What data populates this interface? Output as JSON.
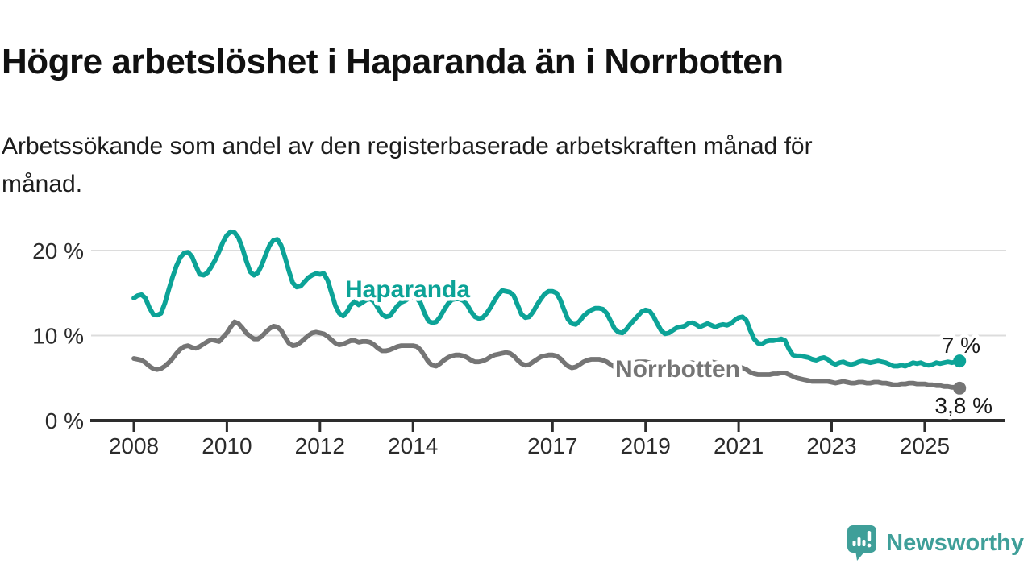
{
  "header": {
    "title": "Högre arbetslöshet i Haparanda än i Norrbotten",
    "subtitle": "Arbetssökande som andel av den registerbaserade arbetskraften månad för månad."
  },
  "chart_data": {
    "type": "line",
    "unit": "%",
    "x_start": {
      "year": 2008,
      "month": 1
    },
    "x_end": {
      "year": 2025,
      "month": 10
    },
    "x_tick_years": [
      2008,
      2010,
      2012,
      2014,
      2017,
      2019,
      2021,
      2023,
      2025
    ],
    "y_ticks": [
      {
        "value": 0,
        "label": "0 %"
      },
      {
        "value": 10,
        "label": "10 %"
      },
      {
        "value": 20,
        "label": "20 %"
      }
    ],
    "gridlines": [
      10,
      20
    ],
    "ylim": [
      0,
      23.5
    ],
    "legend_position": "inline-labels",
    "series": [
      {
        "name": "Haparanda",
        "color": "#0ca397",
        "end_label": "7 %",
        "values": [
          14.4,
          14.7,
          14.8,
          14.4,
          13.3,
          12.5,
          12.4,
          12.6,
          13.8,
          15.4,
          16.9,
          18.2,
          19.2,
          19.7,
          19.8,
          19.3,
          18.2,
          17.2,
          17.1,
          17.4,
          18.1,
          18.9,
          19.9,
          21.0,
          21.8,
          22.2,
          22.1,
          21.5,
          20.3,
          18.8,
          17.5,
          17.1,
          17.4,
          18.3,
          19.5,
          20.6,
          21.2,
          21.3,
          20.6,
          19.2,
          17.6,
          16.2,
          15.7,
          15.8,
          16.3,
          16.8,
          17.1,
          17.3,
          17.2,
          17.3,
          16.5,
          15.0,
          13.5,
          12.6,
          12.3,
          12.8,
          13.6,
          14.0,
          13.6,
          13.9,
          14.2,
          14.3,
          14.0,
          13.2,
          12.5,
          12.2,
          12.3,
          12.9,
          13.5,
          13.9,
          14.1,
          14.4,
          14.6,
          14.4,
          13.8,
          12.6,
          11.7,
          11.5,
          11.6,
          12.2,
          13.0,
          13.7,
          14.2,
          14.3,
          14.3,
          14.1,
          13.6,
          12.8,
          12.2,
          12.0,
          12.1,
          12.6,
          13.3,
          14.1,
          14.8,
          15.3,
          15.2,
          15.1,
          14.7,
          13.6,
          12.5,
          12.1,
          12.2,
          12.8,
          13.6,
          14.3,
          14.9,
          15.2,
          15.2,
          15.0,
          14.2,
          13.0,
          11.9,
          11.4,
          11.3,
          11.7,
          12.3,
          12.7,
          13.0,
          13.2,
          13.2,
          13.1,
          12.6,
          11.7,
          10.8,
          10.4,
          10.3,
          10.7,
          11.3,
          11.8,
          12.3,
          12.8,
          13.0,
          12.9,
          12.3,
          11.4,
          10.6,
          10.2,
          10.3,
          10.6,
          10.9,
          11.0,
          11.1,
          11.4,
          11.5,
          11.3,
          11.0,
          11.2,
          11.4,
          11.2,
          11.0,
          11.2,
          11.3,
          11.2,
          11.4,
          11.8,
          12.1,
          12.2,
          11.8,
          10.6,
          9.6,
          9.1,
          9.0,
          9.3,
          9.4,
          9.4,
          9.5,
          9.6,
          9.4,
          8.4,
          7.7,
          7.6,
          7.6,
          7.5,
          7.4,
          7.2,
          7.1,
          7.3,
          7.4,
          7.2,
          6.8,
          6.6,
          6.8,
          6.9,
          6.7,
          6.6,
          6.7,
          6.9,
          7.0,
          6.9,
          6.8,
          6.9,
          7.0,
          6.9,
          6.8,
          6.6,
          6.4,
          6.4,
          6.5,
          6.4,
          6.6,
          6.8,
          6.7,
          6.8,
          6.6,
          6.5,
          6.6,
          6.8,
          6.7,
          6.8,
          6.9,
          6.8,
          6.9,
          7.0
        ]
      },
      {
        "name": "Norrbotten",
        "color": "#757575",
        "end_label": "3,8 %",
        "values": [
          7.3,
          7.2,
          7.1,
          6.8,
          6.4,
          6.1,
          6.0,
          6.1,
          6.4,
          6.8,
          7.3,
          7.9,
          8.4,
          8.7,
          8.8,
          8.6,
          8.5,
          8.7,
          9.0,
          9.3,
          9.5,
          9.4,
          9.3,
          9.8,
          10.3,
          11.0,
          11.6,
          11.4,
          10.9,
          10.3,
          9.9,
          9.6,
          9.6,
          9.9,
          10.4,
          10.8,
          11.1,
          11.0,
          10.6,
          9.8,
          9.1,
          8.8,
          8.9,
          9.2,
          9.6,
          10.0,
          10.3,
          10.4,
          10.3,
          10.2,
          9.9,
          9.5,
          9.1,
          8.9,
          9.0,
          9.2,
          9.4,
          9.4,
          9.2,
          9.3,
          9.3,
          9.2,
          8.9,
          8.5,
          8.2,
          8.2,
          8.3,
          8.5,
          8.7,
          8.8,
          8.8,
          8.8,
          8.8,
          8.7,
          8.3,
          7.6,
          6.9,
          6.5,
          6.4,
          6.7,
          7.1,
          7.4,
          7.6,
          7.7,
          7.7,
          7.6,
          7.4,
          7.1,
          6.9,
          6.9,
          7.0,
          7.2,
          7.5,
          7.7,
          7.8,
          7.9,
          8.0,
          7.9,
          7.6,
          7.1,
          6.7,
          6.5,
          6.6,
          6.9,
          7.2,
          7.5,
          7.6,
          7.7,
          7.7,
          7.6,
          7.3,
          6.8,
          6.4,
          6.2,
          6.3,
          6.6,
          6.9,
          7.1,
          7.2,
          7.2,
          7.2,
          7.1,
          6.9,
          6.6,
          6.3,
          6.2,
          6.3,
          6.5,
          6.7,
          6.8,
          6.9,
          6.9,
          6.9,
          6.8,
          6.6,
          6.3,
          6.1,
          6.0,
          6.1,
          6.2,
          6.4,
          6.5,
          6.6,
          6.7,
          6.8,
          6.7,
          6.7,
          6.9,
          7.0,
          6.9,
          6.8,
          6.7,
          6.6,
          6.5,
          6.4,
          6.4,
          6.3,
          6.2,
          6.0,
          5.7,
          5.5,
          5.4,
          5.4,
          5.4,
          5.4,
          5.5,
          5.5,
          5.6,
          5.6,
          5.4,
          5.2,
          5.0,
          4.9,
          4.8,
          4.7,
          4.6,
          4.6,
          4.6,
          4.6,
          4.6,
          4.5,
          4.4,
          4.5,
          4.6,
          4.5,
          4.4,
          4.4,
          4.5,
          4.5,
          4.4,
          4.4,
          4.5,
          4.5,
          4.4,
          4.4,
          4.3,
          4.2,
          4.2,
          4.3,
          4.3,
          4.4,
          4.4,
          4.3,
          4.3,
          4.3,
          4.2,
          4.2,
          4.1,
          4.1,
          4.0,
          4.0,
          3.9,
          3.9,
          3.8
        ]
      }
    ]
  },
  "branding": {
    "logo_text": "Newsworthy",
    "logo_color": "#3f9f99",
    "logo_icon": "speech-bubble-bar-chart-icon"
  }
}
